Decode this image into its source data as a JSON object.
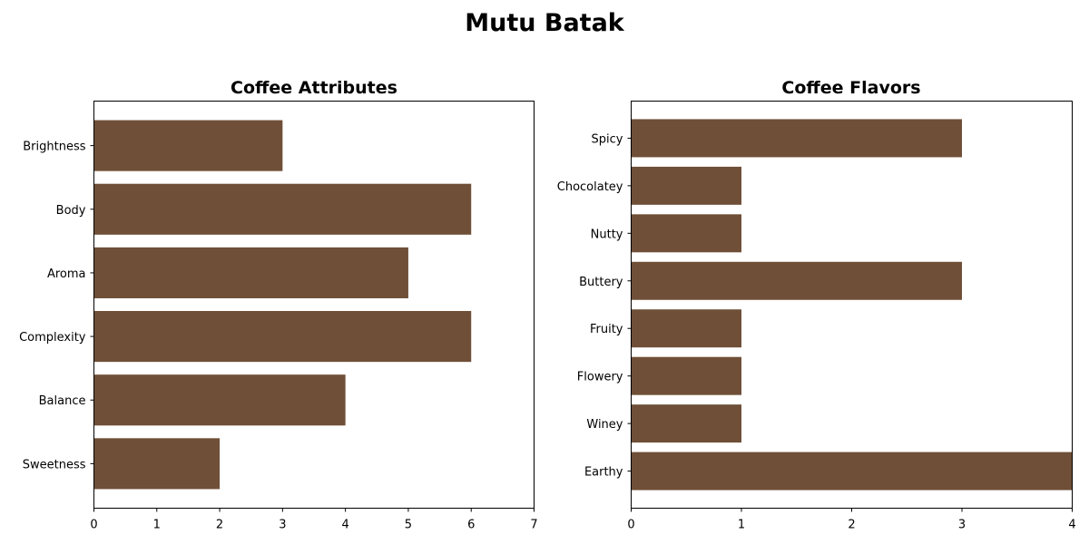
{
  "figure": {
    "title": "Mutu Batak",
    "bar_color": "#6f4f37"
  },
  "chart_data": [
    {
      "type": "bar",
      "orientation": "horizontal",
      "title": "Coffee Attributes",
      "xlabel": "",
      "ylabel": "",
      "categories": [
        "Brightness",
        "Body",
        "Aroma",
        "Complexity",
        "Balance",
        "Sweetness"
      ],
      "values": [
        3,
        6,
        5,
        6,
        4,
        2
      ],
      "xlim": [
        0,
        7
      ],
      "xticks": [
        0,
        1,
        2,
        3,
        4,
        5,
        6,
        7
      ],
      "grid": false
    },
    {
      "type": "bar",
      "orientation": "horizontal",
      "title": "Coffee Flavors",
      "xlabel": "",
      "ylabel": "",
      "categories": [
        "Spicy",
        "Chocolatey",
        "Nutty",
        "Buttery",
        "Fruity",
        "Flowery",
        "Winey",
        "Earthy"
      ],
      "values": [
        3,
        1,
        1,
        3,
        1,
        1,
        1,
        4
      ],
      "xlim": [
        0,
        4
      ],
      "xticks": [
        0,
        1,
        2,
        3,
        4
      ],
      "grid": false
    }
  ]
}
